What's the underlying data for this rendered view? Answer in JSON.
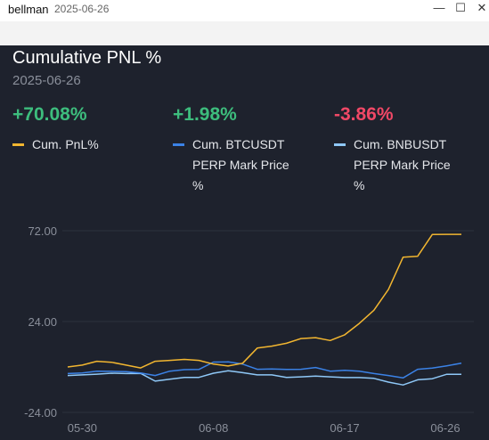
{
  "window": {
    "app_name": "bellman",
    "date": "2025-06-26",
    "minimize_glyph": "—",
    "maximize_glyph": "☐",
    "close_glyph": "✕"
  },
  "header": {
    "title": "Cumulative PNL %",
    "date": "2025-06-26"
  },
  "stats": [
    {
      "value": "+70.08%",
      "label": "Cum. PnL%",
      "label_line1": "Cum. PnL%",
      "label_line2": "",
      "label_line3": "",
      "color": "#3dbd7d",
      "line_color": "#f2b630"
    },
    {
      "value": "+1.98%",
      "label": "Cum. BTCUSDT PERP Mark Price %",
      "label_line1": "Cum. BTCUSDT",
      "label_line2": "PERP Mark Price",
      "label_line3": "%",
      "color": "#3dbd7d",
      "line_color": "#3b82e6"
    },
    {
      "value": "-3.86%",
      "label": "Cum. BNBUSDT PERP Mark Price %",
      "label_line1": "Cum. BNBUSDT",
      "label_line2": "PERP Mark Price",
      "label_line3": "%",
      "color": "#f04866",
      "line_color": "#8fc8f7"
    }
  ],
  "chart_data": {
    "type": "line",
    "title": "Cumulative PNL %",
    "xlabel": "",
    "ylabel": "",
    "ylim": [
      -24,
      72
    ],
    "y_ticks": [
      "72.00",
      "24.00",
      "-24.00"
    ],
    "y_tick_values": [
      72,
      24,
      -24
    ],
    "x_ticks": [
      "05-30",
      "06-08",
      "06-17",
      "06-26"
    ],
    "x": [
      0,
      1,
      2,
      3,
      4,
      5,
      6,
      7,
      8,
      9,
      10,
      11,
      12,
      13,
      14,
      15,
      16,
      17,
      18,
      19,
      20,
      21,
      22,
      23,
      24,
      25,
      26,
      27
    ],
    "x_tick_indices": [
      1,
      10,
      19,
      27
    ],
    "series": [
      {
        "name": "Cum. PnL%",
        "color": "#f2b630",
        "values": [
          0,
          1,
          3,
          2.5,
          1,
          -0.5,
          3,
          3.5,
          4,
          3.5,
          1.5,
          0.5,
          2,
          10,
          11,
          12.5,
          15,
          15.5,
          14,
          17,
          23,
          30,
          41,
          58,
          58.5,
          70,
          70.08,
          70.08
        ]
      },
      {
        "name": "Cum. BTCUSDT PERP Mark Price %",
        "color": "#3b82e6",
        "values": [
          -3.5,
          -3.2,
          -2.2,
          -2.3,
          -2.5,
          -3.2,
          -4.5,
          -2.2,
          -1.4,
          -1.3,
          2.6,
          2.7,
          1.5,
          -1.2,
          -1.1,
          -1.3,
          -1.2,
          -0.3,
          -2.2,
          -1.8,
          -2.2,
          -3.5,
          -4.5,
          -5.8,
          -1.2,
          -0.6,
          0.6,
          1.98
        ]
      },
      {
        "name": "Cum. BNBUSDT PERP Mark Price %",
        "color": "#8fc8f7",
        "values": [
          -4.5,
          -4.2,
          -3.8,
          -3.3,
          -3.5,
          -3.4,
          -7.5,
          -6.5,
          -5.5,
          -5.5,
          -3.3,
          -2,
          -3,
          -4.2,
          -4.2,
          -5.5,
          -5.2,
          -4.8,
          -5.2,
          -5.6,
          -5.6,
          -6,
          -8,
          -9.5,
          -6.8,
          -6.2,
          -3.86,
          -3.86
        ]
      }
    ]
  }
}
